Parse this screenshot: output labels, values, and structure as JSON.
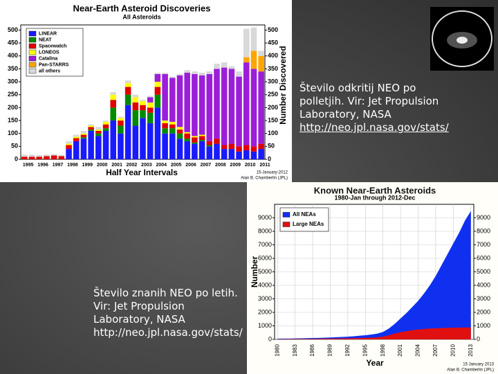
{
  "chart_data": [
    {
      "type": "stacked-bar",
      "title": "Near-Earth Asteroid Discoveries",
      "subtitle": "All Asteroids",
      "x_label": "Half Year Intervals",
      "y2_label": "Number Discovered",
      "notes": [
        "15-January-2012",
        "Alan B. Chamberlin (JPL)"
      ],
      "categories": [
        "1995",
        null,
        "1996",
        null,
        "1997",
        null,
        "1998",
        null,
        "1999",
        null,
        "2000",
        null,
        "2001",
        null,
        "2002",
        null,
        "2003",
        null,
        "2004",
        null,
        "2005",
        null,
        "2006",
        null,
        "2007",
        null,
        "2008",
        null,
        "2009",
        null,
        "2010",
        null,
        "2011"
      ],
      "series": [
        {
          "name": "LINEAR",
          "color": "#1a1aff",
          "values": [
            0,
            0,
            0,
            0,
            0,
            0,
            40,
            70,
            80,
            110,
            90,
            110,
            150,
            100,
            210,
            130,
            160,
            140,
            200,
            100,
            100,
            80,
            70,
            60,
            70,
            50,
            60,
            40,
            40,
            30,
            35,
            30,
            40
          ]
        },
        {
          "name": "NEAT",
          "color": "#008a00",
          "values": [
            0,
            0,
            0,
            0,
            0,
            0,
            0,
            0,
            5,
            5,
            10,
            10,
            50,
            30,
            40,
            60,
            30,
            40,
            50,
            20,
            20,
            20,
            10,
            5,
            5,
            5,
            0,
            0,
            0,
            0,
            0,
            0,
            0
          ]
        },
        {
          "name": "Spacewatch",
          "color": "#e00000",
          "values": [
            10,
            10,
            10,
            12,
            15,
            12,
            15,
            12,
            10,
            10,
            10,
            15,
            30,
            20,
            30,
            30,
            20,
            20,
            30,
            20,
            15,
            15,
            20,
            20,
            15,
            15,
            20,
            15,
            20,
            20,
            20,
            20,
            20
          ]
        },
        {
          "name": "LONEOS",
          "color": "#ffff00",
          "values": [
            0,
            0,
            0,
            0,
            0,
            0,
            5,
            5,
            5,
            5,
            5,
            10,
            20,
            10,
            15,
            20,
            15,
            20,
            20,
            10,
            10,
            10,
            5,
            5,
            5,
            0,
            0,
            0,
            0,
            0,
            0,
            0,
            0
          ]
        },
        {
          "name": "Catalina",
          "color": "#9b1ed8",
          "values": [
            0,
            0,
            0,
            0,
            0,
            0,
            0,
            0,
            0,
            0,
            0,
            0,
            0,
            0,
            0,
            0,
            0,
            20,
            30,
            180,
            170,
            200,
            230,
            240,
            230,
            260,
            270,
            300,
            290,
            270,
            320,
            300,
            280
          ]
        },
        {
          "name": "Pan-STARRS",
          "color": "#ffa500",
          "values": [
            0,
            0,
            0,
            0,
            0,
            0,
            0,
            0,
            0,
            0,
            0,
            0,
            0,
            0,
            0,
            0,
            0,
            0,
            0,
            0,
            0,
            0,
            0,
            0,
            0,
            0,
            0,
            0,
            0,
            0,
            20,
            70,
            60
          ]
        },
        {
          "name": "all others",
          "color": "#d8d8d8",
          "values": [
            8,
            8,
            6,
            6,
            5,
            5,
            10,
            8,
            10,
            5,
            10,
            5,
            10,
            5,
            10,
            10,
            5,
            5,
            5,
            5,
            5,
            5,
            10,
            10,
            10,
            10,
            20,
            20,
            10,
            20,
            110,
            90,
            20
          ]
        }
      ],
      "ylim": [
        0,
        520
      ],
      "yticks": [
        0,
        50,
        100,
        150,
        200,
        250,
        300,
        350,
        400,
        450,
        500
      ],
      "y2lim": [
        0,
        520
      ],
      "y2ticks": [
        0,
        50,
        100,
        150,
        200,
        250,
        300,
        350,
        400,
        450,
        500
      ],
      "legend": "upper-left"
    },
    {
      "type": "area",
      "title": "Known Near-Earth Asteroids",
      "subtitle": "1980-Jan through 2012-Dec",
      "x_label": "Year",
      "y_label": "Number",
      "notes": [
        "15 January 2013",
        "Alan B. Chamberlin (JPL)"
      ],
      "x": [
        1980,
        1981,
        1982,
        1983,
        1984,
        1985,
        1986,
        1987,
        1988,
        1989,
        1990,
        1991,
        1992,
        1993,
        1994,
        1995,
        1996,
        1997,
        1998,
        1999,
        2000,
        2001,
        2002,
        2003,
        2004,
        2005,
        2006,
        2007,
        2008,
        2009,
        2010,
        2011,
        2012,
        2013
      ],
      "series": [
        {
          "name": "All NEAs",
          "color": "#1030f0",
          "values": [
            50,
            55,
            60,
            70,
            80,
            90,
            100,
            110,
            120,
            140,
            160,
            180,
            200,
            230,
            270,
            310,
            360,
            420,
            550,
            800,
            1150,
            1550,
            1950,
            2400,
            2850,
            3400,
            4000,
            4700,
            5500,
            6300,
            7100,
            7900,
            8800,
            9500
          ]
        },
        {
          "name": "Large NEAs",
          "color": "#e01010",
          "values": [
            20,
            22,
            25,
            28,
            30,
            35,
            40,
            45,
            50,
            55,
            60,
            70,
            80,
            90,
            100,
            115,
            130,
            150,
            200,
            300,
            430,
            530,
            610,
            680,
            730,
            770,
            800,
            820,
            840,
            855,
            865,
            875,
            880,
            885
          ]
        }
      ],
      "xlim": [
        1979.5,
        2013.5
      ],
      "xticks": [
        1980,
        1983,
        1986,
        1989,
        1992,
        1995,
        1998,
        2001,
        2004,
        2007,
        2010,
        2013
      ],
      "ylim": [
        0,
        10000
      ],
      "yticks": [
        0,
        1000,
        2000,
        3000,
        4000,
        5000,
        6000,
        7000,
        8000,
        9000
      ],
      "y2lim": [
        0,
        10000
      ],
      "y2ticks": [
        0,
        1000,
        2000,
        3000,
        4000,
        5000,
        6000,
        7000,
        8000,
        9000
      ],
      "grid": true,
      "legend": "upper-left"
    }
  ],
  "captions": [
    {
      "text": "Število odkritij NEO po polletjih. Vir: Jet Propulsion Laboratory, NASA ",
      "link": "http://neo.jpl.nasa.gov/stats/"
    },
    {
      "text": "Število znanih NEO po letih. Vir: Jet Propulsion Laboratory, NASA http://neo.jpl.nasa.gov/stats/"
    }
  ]
}
